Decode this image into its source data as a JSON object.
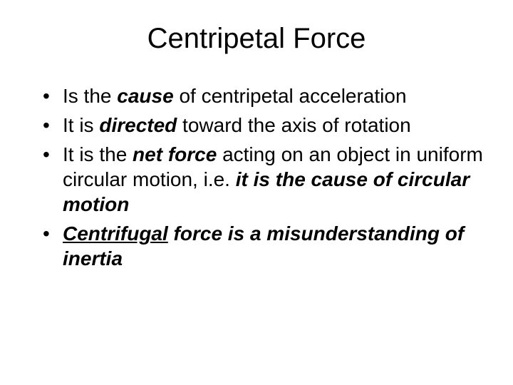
{
  "title": "Centripetal Force",
  "bullets": [
    {
      "pre": "Is the ",
      "em1": "cause",
      "post": " of centripetal acceleration"
    },
    {
      "pre": "It is ",
      "em1": "directed",
      "post": " toward the axis of rotation"
    },
    {
      "pre": "It is the ",
      "em1": "net force",
      "mid": " acting on an object in uniform circular motion, i.e. ",
      "em2": "it is the cause of circular motion"
    },
    {
      "em1u": "Centrifugal",
      "em2": " force is a misunderstanding of inertia"
    }
  ],
  "styling": {
    "background_color": "#ffffff",
    "text_color": "#000000",
    "title_fontsize": 40,
    "body_fontsize": 28,
    "font_family": "Arial"
  }
}
